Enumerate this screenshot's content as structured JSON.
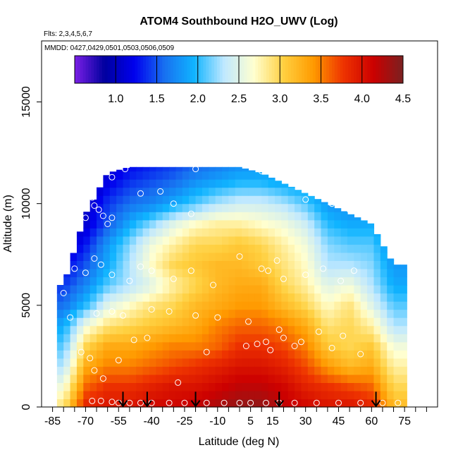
{
  "chart_data": {
    "type": "heatmap",
    "title": "ATOM4 Southbound H2O_UWV (Log)",
    "flights_note": "Flts: 2,3,4,5,6,7",
    "dates_note": "MMDD: 0427,0429,0501,0503,0506,0509",
    "xlabel": "Latitude (deg N)",
    "ylabel": "Altitude (m)",
    "xlim": [
      -90,
      90
    ],
    "ylim": [
      0,
      18000
    ],
    "x_ticks": [
      -85,
      -70,
      -55,
      -40,
      -25,
      -10,
      5,
      15,
      30,
      45,
      60,
      75
    ],
    "x_minor_ticks": [
      -80,
      -75,
      -65,
      -60,
      -50,
      -45,
      -35,
      -30,
      -20,
      -15,
      -5,
      0,
      10,
      20,
      25,
      35,
      40,
      50,
      55,
      65,
      70,
      80,
      85
    ],
    "y_ticks": [
      0,
      5000,
      10000,
      15000
    ],
    "colorbar": {
      "range": [
        0.5,
        4.5
      ],
      "ticks": [
        "1.0",
        "1.5",
        "2.0",
        "2.5",
        "3.0",
        "3.5",
        "4.0",
        "4.5"
      ],
      "tick_values": [
        1.0,
        1.5,
        2.0,
        2.5,
        3.0,
        3.5,
        4.0,
        4.5
      ],
      "colors": [
        "#7b1fe6",
        "#00009e",
        "#0000ee",
        "#1870f0",
        "#10b4ff",
        "#bfe8ff",
        "#ffffd0",
        "#ffd040",
        "#ff9a00",
        "#ee3300",
        "#cc0000",
        "#7a2020"
      ]
    },
    "profile_markers_lat": [
      -53,
      -42,
      -20,
      18,
      62
    ],
    "field": {
      "lats": [
        -80,
        -70,
        -60,
        -50,
        -40,
        -30,
        -20,
        -10,
        0,
        10,
        20,
        30,
        40,
        50,
        60,
        70
      ],
      "alts": [
        0,
        1000,
        2000,
        3000,
        4000,
        5000,
        6000,
        7000,
        8000,
        9000,
        10000,
        11000,
        12000
      ],
      "top_alt": [
        6000,
        9500,
        11500,
        11800,
        11800,
        11800,
        11800,
        11800,
        11800,
        11500,
        11000,
        10500,
        10000,
        9500,
        9000,
        7000
      ],
      "values": [
        [
          2.9,
          3.9,
          4.0,
          4.0,
          4.1,
          4.1,
          4.2,
          4.3,
          4.4,
          4.4,
          4.2,
          4.1,
          4.0,
          4.0,
          3.9,
          3.2
        ],
        [
          2.6,
          3.6,
          3.8,
          3.8,
          3.9,
          4.0,
          4.0,
          4.1,
          4.2,
          4.2,
          4.1,
          3.9,
          3.8,
          3.7,
          3.6,
          3.0
        ],
        [
          2.3,
          3.3,
          3.5,
          3.5,
          3.6,
          3.7,
          3.8,
          3.9,
          4.0,
          4.0,
          3.9,
          3.7,
          3.4,
          3.2,
          3.3,
          2.8
        ],
        [
          2.1,
          3.0,
          3.3,
          3.3,
          3.4,
          3.5,
          3.5,
          3.6,
          3.8,
          3.8,
          3.7,
          3.5,
          3.1,
          3.0,
          3.1,
          2.6
        ],
        [
          1.9,
          2.6,
          2.9,
          3.0,
          3.1,
          3.2,
          3.3,
          3.5,
          3.6,
          3.6,
          3.5,
          3.3,
          2.9,
          3.0,
          2.8,
          2.3
        ],
        [
          1.6,
          2.0,
          2.5,
          2.7,
          2.9,
          3.0,
          3.2,
          3.3,
          3.4,
          3.4,
          3.2,
          3.0,
          2.7,
          2.9,
          2.5,
          2.1
        ],
        [
          1.4,
          1.7,
          2.1,
          2.3,
          2.5,
          2.8,
          3.0,
          3.2,
          3.3,
          3.3,
          3.0,
          2.8,
          2.5,
          2.6,
          2.3,
          1.9
        ],
        [
          1.2,
          1.5,
          1.9,
          2.3,
          2.7,
          3.0,
          3.1,
          3.2,
          3.2,
          3.1,
          2.9,
          2.7,
          2.3,
          2.3,
          2.2,
          1.8
        ],
        [
          1.0,
          1.3,
          1.8,
          2.2,
          2.6,
          2.8,
          3.0,
          3.0,
          3.1,
          3.0,
          2.8,
          2.6,
          2.2,
          2.1,
          2.1,
          1.7
        ],
        [
          0.9,
          1.1,
          1.5,
          1.9,
          2.2,
          2.5,
          2.7,
          2.8,
          2.8,
          2.7,
          2.6,
          2.4,
          2.0,
          1.9,
          1.9,
          1.6
        ],
        [
          0.8,
          1.0,
          1.4,
          1.6,
          1.7,
          1.9,
          2.1,
          2.3,
          2.4,
          2.4,
          2.3,
          2.1,
          1.8,
          1.7,
          1.6,
          1.5
        ],
        [
          0.8,
          0.9,
          1.2,
          1.4,
          1.5,
          1.6,
          1.8,
          1.9,
          2.0,
          2.0,
          1.9,
          1.8,
          1.6,
          1.5,
          1.4,
          1.4
        ],
        [
          0.8,
          0.9,
          1.0,
          1.2,
          1.3,
          1.4,
          1.5,
          1.6,
          1.7,
          1.7,
          1.6,
          1.5,
          1.4,
          1.3,
          1.3,
          1.3
        ]
      ]
    },
    "sample_points": [
      [
        -73,
        9600
      ],
      [
        -70,
        9300
      ],
      [
        -67,
        10300
      ],
      [
        -66,
        9900
      ],
      [
        -64,
        9700
      ],
      [
        -62,
        9400
      ],
      [
        -60,
        9000
      ],
      [
        -58,
        9300
      ],
      [
        -45,
        10500
      ],
      [
        -36,
        10600
      ],
      [
        -30,
        10000
      ],
      [
        -22,
        9500
      ],
      [
        -65,
        12100
      ],
      [
        -58,
        11300
      ],
      [
        -52,
        11700
      ],
      [
        -48,
        12300
      ],
      [
        -20,
        11700
      ],
      [
        -5,
        12000
      ],
      [
        10,
        11600
      ],
      [
        20,
        11700
      ],
      [
        25,
        11200
      ],
      [
        30,
        10200
      ],
      [
        35,
        10600
      ],
      [
        42,
        10000
      ],
      [
        50,
        9700
      ],
      [
        56,
        9800
      ],
      [
        -75,
        6800
      ],
      [
        -70,
        6600
      ],
      [
        -66,
        7300
      ],
      [
        -63,
        7000
      ],
      [
        -58,
        6500
      ],
      [
        -50,
        6200
      ],
      [
        -45,
        6900
      ],
      [
        -40,
        6700
      ],
      [
        -30,
        6300
      ],
      [
        -22,
        6700
      ],
      [
        -12,
        6000
      ],
      [
        0,
        7400
      ],
      [
        10,
        6800
      ],
      [
        13,
        6700
      ],
      [
        17,
        7200
      ],
      [
        20,
        6300
      ],
      [
        30,
        6500
      ],
      [
        38,
        6800
      ],
      [
        46,
        6200
      ],
      [
        52,
        6700
      ],
      [
        -80,
        5600
      ],
      [
        -77,
        4400
      ],
      [
        -65,
        4600
      ],
      [
        -58,
        4700
      ],
      [
        -53,
        4500
      ],
      [
        -40,
        4800
      ],
      [
        -32,
        4700
      ],
      [
        -20,
        4500
      ],
      [
        -10,
        4400
      ],
      [
        4,
        4200
      ],
      [
        20,
        3400
      ],
      [
        28,
        3200
      ],
      [
        36,
        3700
      ],
      [
        47,
        3500
      ],
      [
        -72,
        2700
      ],
      [
        -68,
        2400
      ],
      [
        -66,
        1800
      ],
      [
        -62,
        1400
      ],
      [
        -55,
        2300
      ],
      [
        -48,
        3300
      ],
      [
        -42,
        3400
      ],
      [
        -28,
        1200
      ],
      [
        -15,
        2700
      ],
      [
        3,
        3000
      ],
      [
        8,
        3100
      ],
      [
        12,
        3200
      ],
      [
        14,
        2800
      ],
      [
        18,
        3800
      ],
      [
        25,
        3000
      ],
      [
        42,
        2900
      ],
      [
        55,
        2600
      ],
      [
        -67,
        300
      ],
      [
        -63,
        300
      ],
      [
        -58,
        250
      ],
      [
        -55,
        200
      ],
      [
        -50,
        200
      ],
      [
        -45,
        200
      ],
      [
        -40,
        200
      ],
      [
        -32,
        200
      ],
      [
        -25,
        200
      ],
      [
        -15,
        200
      ],
      [
        -7,
        200
      ],
      [
        0,
        200
      ],
      [
        5,
        200
      ],
      [
        12,
        200
      ],
      [
        18,
        200
      ],
      [
        25,
        200
      ],
      [
        35,
        200
      ],
      [
        45,
        200
      ],
      [
        55,
        200
      ],
      [
        65,
        200
      ],
      [
        72,
        200
      ]
    ]
  }
}
